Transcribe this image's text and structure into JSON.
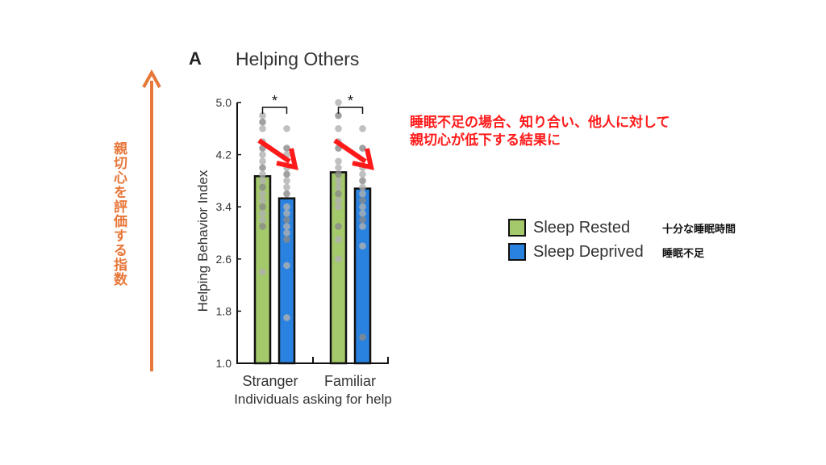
{
  "chart_data": {
    "type": "bar",
    "panel_label": "A",
    "title": "Helping Others",
    "xlabel": "Individuals asking for help",
    "ylabel": "Helping Behavior Index",
    "ylim": [
      1.0,
      5.0
    ],
    "yticks": [
      "1.0",
      "1.8",
      "2.6",
      "3.4",
      "4.2",
      "5.0"
    ],
    "categories": [
      "Stranger",
      "Familiar"
    ],
    "series": [
      {
        "name": "Sleep Rested",
        "color": "#a3c96a",
        "values": [
          3.87,
          3.93
        ],
        "points": [
          [
            4.8,
            4.7,
            4.6,
            4.4,
            4.3,
            4.2,
            4.1,
            4.0,
            3.9,
            3.8,
            3.7,
            3.6,
            3.5,
            3.4,
            3.3,
            3.2,
            3.1,
            2.4
          ],
          [
            5.0,
            4.8,
            4.6,
            4.4,
            4.3,
            4.1,
            4.0,
            3.9,
            3.8,
            3.7,
            3.6,
            3.5,
            3.4,
            3.1,
            2.9,
            2.6
          ]
        ]
      },
      {
        "name": "Sleep Deprived",
        "color": "#2a82e0",
        "values": [
          3.53,
          3.68
        ],
        "points": [
          [
            4.6,
            4.3,
            4.2,
            4.0,
            3.9,
            3.8,
            3.7,
            3.6,
            3.4,
            3.3,
            3.2,
            3.1,
            3.0,
            2.9,
            2.5,
            1.7
          ],
          [
            4.6,
            4.3,
            4.0,
            3.9,
            3.8,
            3.7,
            3.6,
            3.5,
            3.4,
            3.3,
            3.2,
            3.1,
            2.8,
            1.4
          ]
        ]
      }
    ],
    "significance": [
      "*",
      "*"
    ],
    "legend": "right",
    "grid": false
  },
  "annotations": {
    "note_line1": "睡眠不足の場合、知り合い、他人に対して",
    "note_line2": "親切心が低下する結果に",
    "axis_note": "親切心を評価する指数",
    "legend_jp": [
      "十分な睡眠時間",
      "睡眠不足"
    ],
    "arrow_color": "#e8773a",
    "note_color": "#ff1a1a"
  }
}
